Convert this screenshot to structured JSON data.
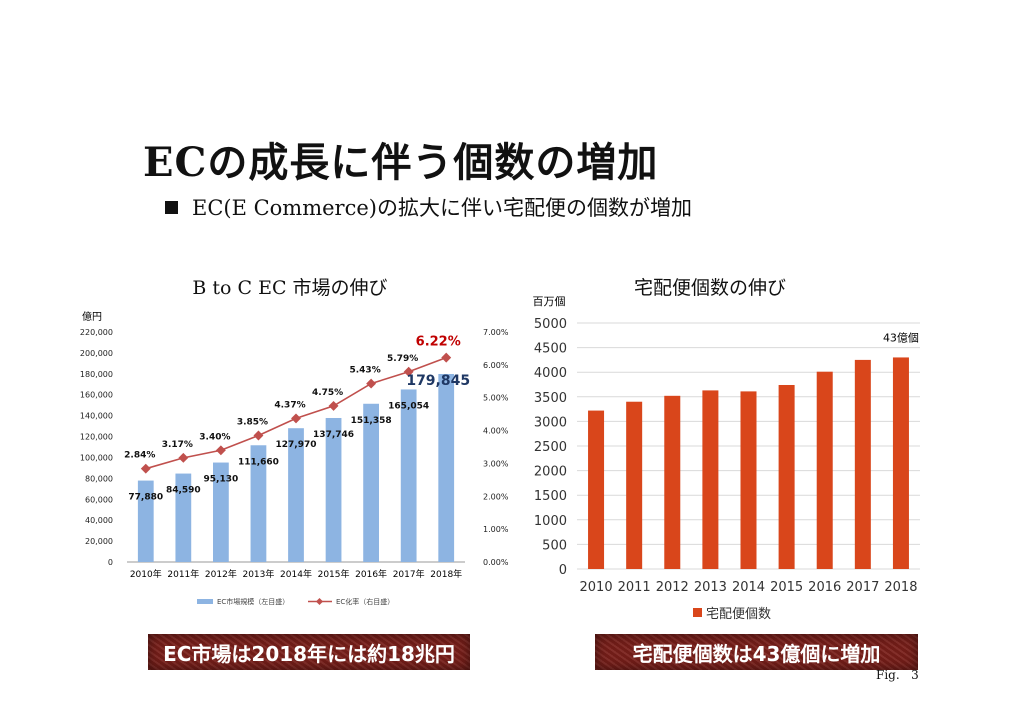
{
  "slide": {
    "title": "ECの成長に伴う個数の増加",
    "bullet": "EC(E Commerce)の拡大に伴い宅配便の個数が増加",
    "fig_label": "Fig.   3"
  },
  "banners": {
    "left": "EC市場は2018年には約18兆円",
    "right": "宅配便個数は43億個に増加"
  },
  "chart_data": [
    {
      "type": "bar",
      "title": "B to C EC 市場の伸び",
      "y_unit_label": "億円",
      "categories": [
        "2010年",
        "2011年",
        "2012年",
        "2013年",
        "2014年",
        "2015年",
        "2016年",
        "2017年",
        "2018年"
      ],
      "series": [
        {
          "name": "EC市場規模（左目盛）",
          "type": "bar",
          "axis": "left",
          "color": "#8db4e2",
          "values": [
            77880,
            84590,
            95130,
            111660,
            127970,
            137746,
            151358,
            165054,
            179845
          ],
          "labels": [
            "77,880",
            "84,590",
            "95,130",
            "111,660",
            "127,970",
            "137,746",
            "151,358",
            "165,054",
            "179,845"
          ]
        },
        {
          "name": "EC化率（右目盛）",
          "type": "line",
          "axis": "right",
          "color": "#c0504d",
          "values": [
            2.84,
            3.17,
            3.4,
            3.85,
            4.37,
            4.75,
            5.43,
            5.79,
            6.22
          ],
          "labels": [
            "2.84%",
            "3.17%",
            "3.40%",
            "3.85%",
            "4.37%",
            "4.75%",
            "5.43%",
            "5.79%",
            "6.22%"
          ]
        }
      ],
      "ylim": [
        0,
        220000
      ],
      "yticks": [
        "0",
        "20,000",
        "40,000",
        "60,000",
        "80,000",
        "100,000",
        "120,000",
        "140,000",
        "160,000",
        "180,000",
        "200,000",
        "220,000"
      ],
      "y2lim": [
        0,
        7
      ],
      "y2ticks": [
        "0.00%",
        "1.00%",
        "2.00%",
        "3.00%",
        "4.00%",
        "5.00%",
        "6.00%",
        "7.00%"
      ],
      "highlight": {
        "bar_label_color": "#1f3864",
        "line_label_color": "#c00000"
      },
      "legend": "bottom"
    },
    {
      "type": "bar",
      "title": "宅配便個数の伸び",
      "y_unit_label": "百万個",
      "categories": [
        "2010",
        "2011",
        "2012",
        "2013",
        "2014",
        "2015",
        "2016",
        "2017",
        "2018"
      ],
      "series": [
        {
          "name": "宅配便個数",
          "color": "#d9461b",
          "values": [
            3220,
            3400,
            3520,
            3630,
            3610,
            3740,
            4010,
            4250,
            4300
          ]
        }
      ],
      "ylim": [
        0,
        5000
      ],
      "yticks": [
        "0",
        "500",
        "1000",
        "1500",
        "2000",
        "2500",
        "3000",
        "3500",
        "4000",
        "4500",
        "5000"
      ],
      "annotation": "43億個",
      "grid": true,
      "legend": "bottom"
    }
  ]
}
